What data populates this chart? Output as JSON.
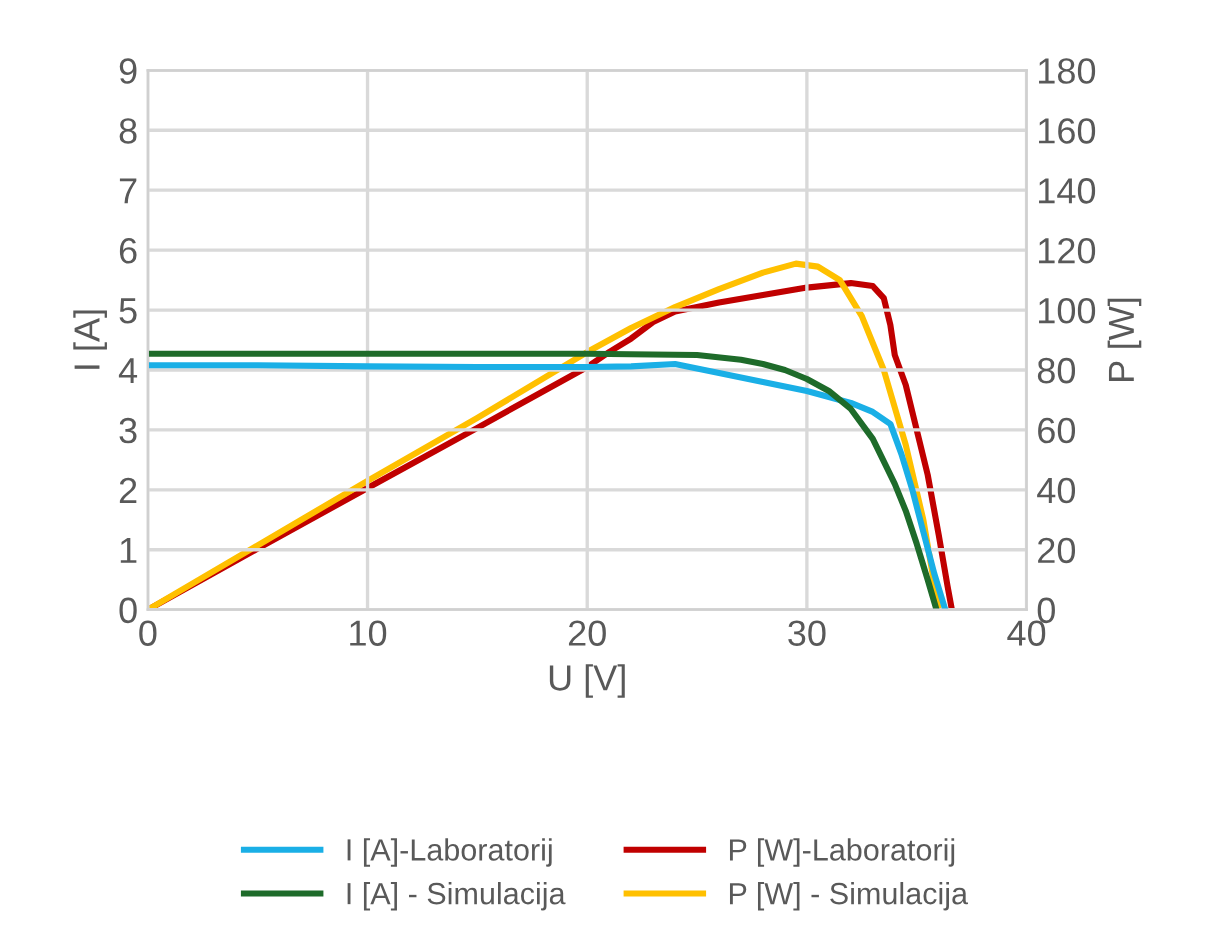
{
  "chart_data": {
    "type": "line",
    "xlabel": "U [V]",
    "ylabel": "I [A]",
    "y2label": "P [W]",
    "xlim": [
      0,
      40
    ],
    "xticks": [
      0,
      10,
      20,
      30,
      40
    ],
    "ylim": [
      0,
      9
    ],
    "yticks": [
      0,
      1,
      2,
      3,
      4,
      5,
      6,
      7,
      8,
      9
    ],
    "y2lim": [
      0,
      180
    ],
    "y2ticks": [
      0,
      20,
      40,
      60,
      80,
      100,
      120,
      140,
      160,
      180
    ],
    "grid": true,
    "legend": "bottom",
    "marker": "none",
    "line_style": "solid",
    "series": [
      {
        "name": "I [A]-Laboratorij",
        "color": "#1aafe6",
        "x": [
          0,
          5,
          10,
          15,
          20,
          22,
          24,
          26,
          28,
          30,
          32,
          33,
          33.8,
          34.3,
          34.8,
          35.3,
          35.8,
          36.3
        ],
        "values": [
          4.08,
          4.08,
          4.06,
          4.05,
          4.05,
          4.06,
          4.1,
          3.95,
          3.8,
          3.65,
          3.45,
          3.3,
          3.1,
          2.6,
          2.0,
          1.3,
          0.6,
          0
        ]
      },
      {
        "name": "I [A] - Simulacija",
        "color": "#1e6b2a",
        "x": [
          0,
          5,
          10,
          15,
          20,
          25,
          27,
          28,
          29,
          30,
          31,
          32,
          33,
          34,
          34.5,
          35,
          35.5,
          35.9
        ],
        "values": [
          4.27,
          4.27,
          4.27,
          4.27,
          4.27,
          4.25,
          4.17,
          4.1,
          4.0,
          3.85,
          3.65,
          3.35,
          2.85,
          2.1,
          1.65,
          1.1,
          0.5,
          0
        ]
      },
      {
        "name": "P [W]-Laboratorij",
        "color": "#c00000",
        "axis": "y2",
        "x": [
          0,
          5,
          10,
          15,
          20,
          21,
          22,
          23,
          24,
          26,
          28,
          30,
          32,
          33,
          33.5,
          33.8,
          34,
          34.5,
          35,
          35.5,
          36,
          36.4,
          36.6
        ],
        "values": [
          0,
          20.4,
          40.6,
          60.7,
          81,
          86,
          90.5,
          96,
          99.5,
          102.5,
          105,
          107.5,
          109,
          108,
          104,
          95,
          85,
          75,
          60,
          45,
          25,
          8,
          0
        ]
      },
      {
        "name": "P [W] - Simulacija",
        "color": "#ffc000",
        "axis": "y2",
        "x": [
          0,
          5,
          10,
          15,
          20,
          22,
          24,
          26,
          28,
          29.5,
          30.5,
          31.5,
          32.5,
          33.5,
          34.5,
          35.3,
          36
        ],
        "values": [
          0,
          21.5,
          43,
          64,
          86,
          94,
          101,
          107,
          112.5,
          115.5,
          114.5,
          110,
          98,
          80,
          55,
          30,
          0
        ]
      }
    ]
  }
}
